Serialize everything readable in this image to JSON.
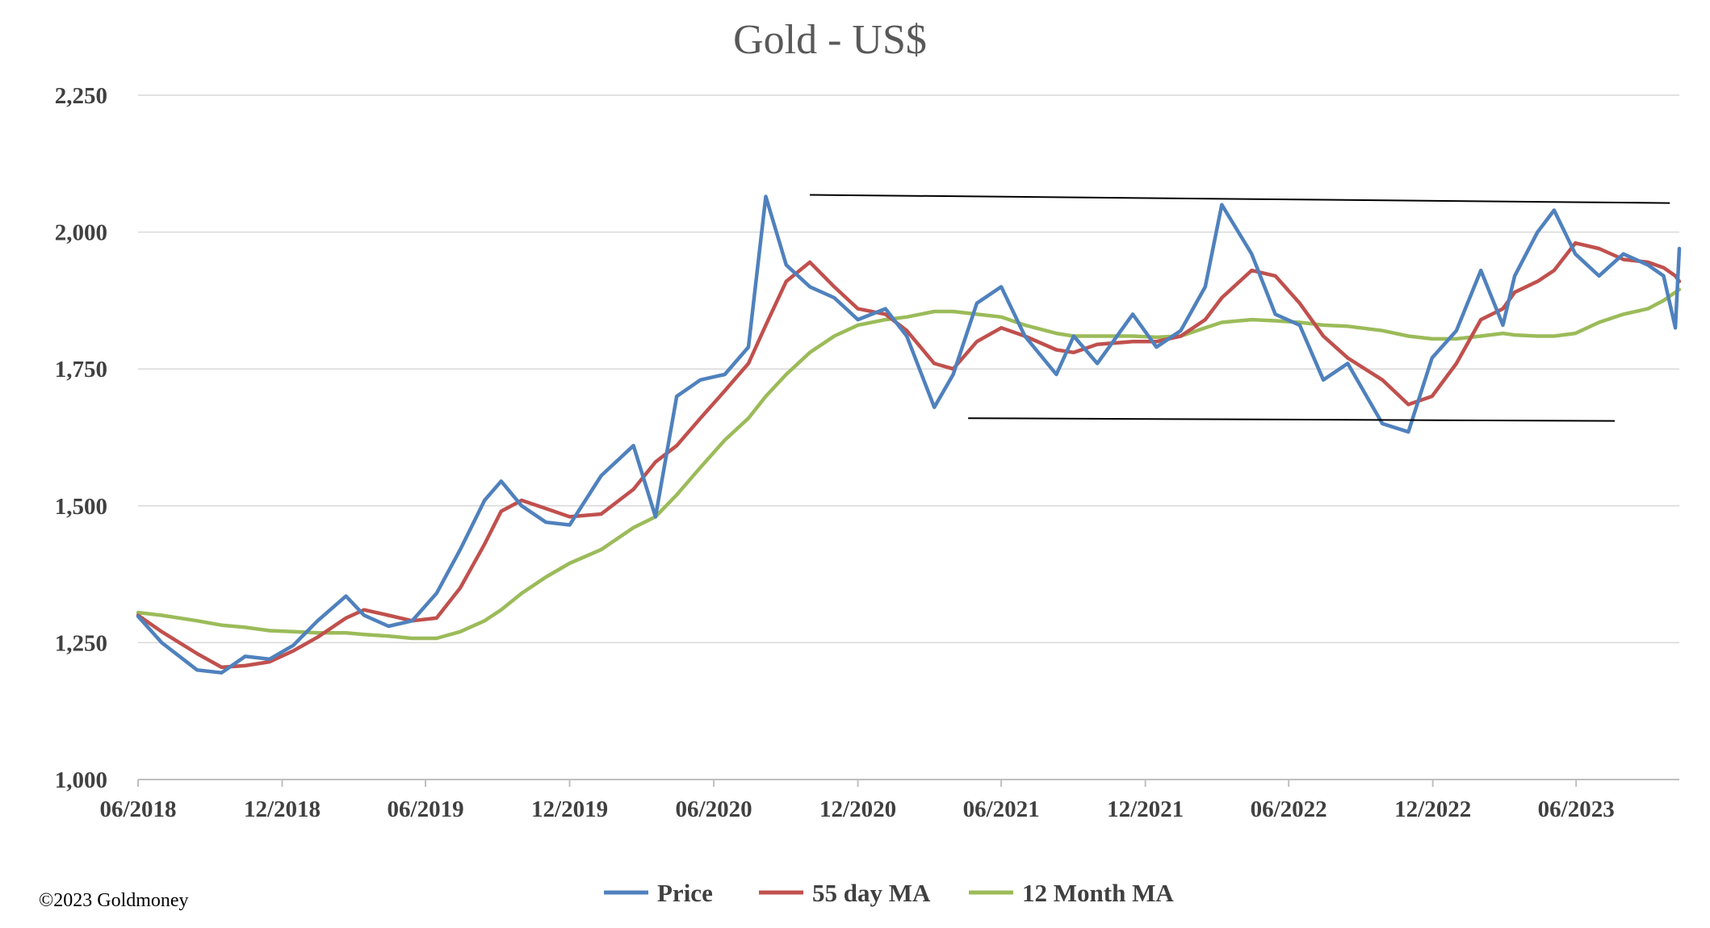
{
  "chart_data": {
    "type": "line",
    "title": "Gold - US$",
    "xlabel": "",
    "ylabel": "",
    "ylim": [
      1000,
      2250
    ],
    "yticks": [
      1000,
      1250,
      1500,
      1750,
      2000,
      2250
    ],
    "ytick_labels": [
      "1,000",
      "1,250",
      "1,500",
      "1,750",
      "2,000",
      "2,250"
    ],
    "xlim": [
      "2018-06-01",
      "2023-10-10"
    ],
    "xticks": [
      "2018-06-01",
      "2018-12-01",
      "2019-06-01",
      "2019-12-01",
      "2020-06-01",
      "2020-12-01",
      "2021-06-01",
      "2021-12-01",
      "2022-06-01",
      "2022-12-01",
      "2023-06-01"
    ],
    "xtick_labels": [
      "06/2018",
      "12/2018",
      "06/2019",
      "12/2019",
      "06/2020",
      "12/2020",
      "06/2021",
      "12/2021",
      "06/2022",
      "12/2022",
      "06/2023"
    ],
    "grid": "horizontal",
    "legend_position": "bottom",
    "x": [
      "2018-06-01",
      "2018-07-01",
      "2018-08-15",
      "2018-09-15",
      "2018-10-15",
      "2018-11-15",
      "2018-12-15",
      "2019-01-15",
      "2019-02-20",
      "2019-03-15",
      "2019-04-15",
      "2019-05-15",
      "2019-06-15",
      "2019-07-15",
      "2019-08-15",
      "2019-09-05",
      "2019-10-01",
      "2019-11-01",
      "2019-12-01",
      "2020-01-10",
      "2020-02-20",
      "2020-03-19",
      "2020-04-15",
      "2020-05-15",
      "2020-06-15",
      "2020-07-15",
      "2020-08-06",
      "2020-09-01",
      "2020-10-01",
      "2020-11-01",
      "2020-12-01",
      "2021-01-05",
      "2021-02-01",
      "2021-03-08",
      "2021-04-01",
      "2021-05-01",
      "2021-06-01",
      "2021-07-01",
      "2021-08-10",
      "2021-09-01",
      "2021-10-01",
      "2021-11-15",
      "2021-12-15",
      "2022-01-15",
      "2022-02-15",
      "2022-03-08",
      "2022-04-15",
      "2022-05-15",
      "2022-06-15",
      "2022-07-15",
      "2022-08-15",
      "2022-09-28",
      "2022-10-31",
      "2022-11-30",
      "2022-12-31",
      "2023-01-31",
      "2023-02-28",
      "2023-03-15",
      "2023-04-13",
      "2023-05-04",
      "2023-05-31",
      "2023-06-30",
      "2023-07-31",
      "2023-08-31",
      "2023-09-20",
      "2023-10-05",
      "2023-10-10"
    ],
    "series": [
      {
        "name": "Price",
        "color": "#4F81BD",
        "values": [
          1298,
          1250,
          1200,
          1195,
          1225,
          1220,
          1245,
          1290,
          1335,
          1300,
          1280,
          1290,
          1340,
          1420,
          1510,
          1545,
          1500,
          1470,
          1465,
          1555,
          1610,
          1480,
          1700,
          1730,
          1740,
          1790,
          2065,
          1940,
          1900,
          1880,
          1840,
          1860,
          1810,
          1680,
          1740,
          1870,
          1900,
          1810,
          1740,
          1810,
          1760,
          1850,
          1790,
          1820,
          1900,
          2050,
          1960,
          1850,
          1830,
          1730,
          1760,
          1650,
          1635,
          1770,
          1820,
          1930,
          1830,
          1920,
          2000,
          2040,
          1960,
          1920,
          1960,
          1940,
          1920,
          1825,
          1970
        ]
      },
      {
        "name": "55 day MA",
        "color": "#C0504D",
        "values": [
          1300,
          1270,
          1230,
          1205,
          1208,
          1215,
          1235,
          1260,
          1295,
          1310,
          1300,
          1290,
          1295,
          1350,
          1430,
          1490,
          1510,
          1495,
          1480,
          1485,
          1530,
          1580,
          1610,
          1660,
          1710,
          1760,
          1830,
          1910,
          1945,
          1900,
          1860,
          1850,
          1820,
          1760,
          1750,
          1800,
          1825,
          1810,
          1785,
          1780,
          1795,
          1800,
          1800,
          1810,
          1840,
          1880,
          1930,
          1920,
          1870,
          1810,
          1770,
          1730,
          1685,
          1700,
          1760,
          1840,
          1860,
          1890,
          1910,
          1930,
          1980,
          1970,
          1950,
          1945,
          1935,
          1920,
          1910
        ]
      },
      {
        "name": "12 Month MA",
        "color": "#9BBB59",
        "values": [
          1305,
          1300,
          1290,
          1282,
          1278,
          1272,
          1270,
          1268,
          1268,
          1265,
          1262,
          1258,
          1258,
          1270,
          1290,
          1310,
          1340,
          1370,
          1395,
          1420,
          1460,
          1480,
          1520,
          1570,
          1620,
          1660,
          1700,
          1740,
          1780,
          1810,
          1830,
          1840,
          1845,
          1855,
          1855,
          1850,
          1845,
          1830,
          1815,
          1810,
          1810,
          1810,
          1808,
          1810,
          1825,
          1835,
          1840,
          1838,
          1835,
          1830,
          1828,
          1820,
          1810,
          1805,
          1805,
          1810,
          1815,
          1812,
          1810,
          1810,
          1815,
          1835,
          1850,
          1860,
          1875,
          1890,
          1895
        ]
      }
    ],
    "annotations": [
      {
        "type": "trendline",
        "from": [
          "2020-10-01",
          2068
        ],
        "to": [
          "2023-09-28",
          2053
        ],
        "color": "#000000"
      },
      {
        "type": "trendline",
        "from": [
          "2021-04-20",
          1660
        ],
        "to": [
          "2023-07-20",
          1655
        ],
        "color": "#000000"
      }
    ]
  },
  "footer": {
    "copyright": "©2023 Goldmoney"
  }
}
